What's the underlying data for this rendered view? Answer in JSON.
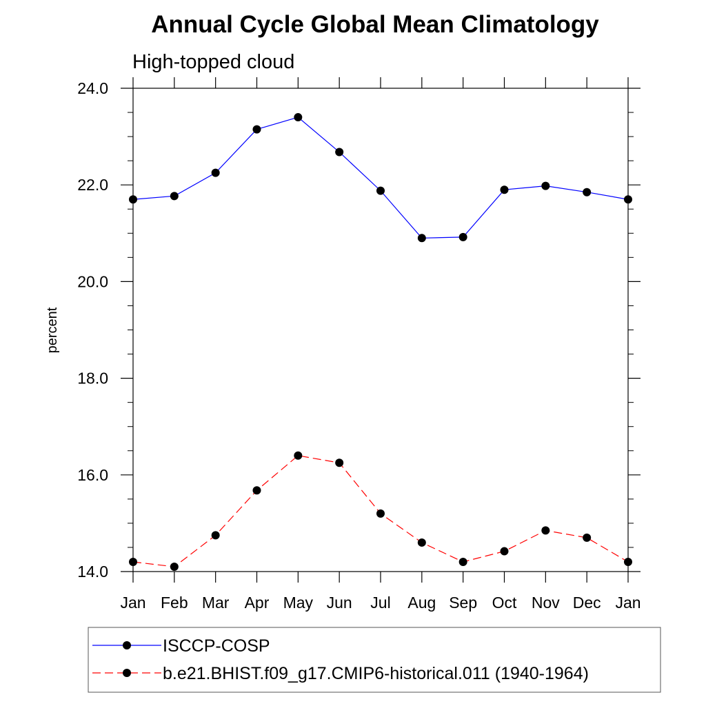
{
  "chart_data": {
    "type": "line",
    "title": "Annual Cycle Global Mean Climatology",
    "subtitle": "High-topped cloud",
    "xlabel": "",
    "ylabel": "percent",
    "categories": [
      "Jan",
      "Feb",
      "Mar",
      "Apr",
      "May",
      "Jun",
      "Jul",
      "Aug",
      "Sep",
      "Oct",
      "Nov",
      "Dec",
      "Jan"
    ],
    "ylim": [
      14.0,
      24.0
    ],
    "yticks": [
      "14.0",
      "16.0",
      "18.0",
      "20.0",
      "22.0",
      "24.0"
    ],
    "ytick_values": [
      14,
      16,
      18,
      20,
      22,
      24
    ],
    "grid": false,
    "legend_position": "bottom",
    "series": [
      {
        "name": "ISCCP-COSP",
        "color": "#0000ff",
        "style": "solid",
        "values": [
          21.7,
          21.77,
          22.25,
          23.15,
          23.4,
          22.68,
          21.88,
          20.9,
          20.92,
          21.9,
          21.98,
          21.85,
          21.7
        ]
      },
      {
        "name": "b.e21.BHIST.f09_g17.CMIP6-historical.011 (1940-1964)",
        "color": "#ff0000",
        "style": "dashed",
        "values": [
          14.2,
          14.1,
          14.75,
          15.68,
          16.4,
          16.25,
          15.2,
          14.6,
          14.2,
          14.42,
          14.85,
          14.7,
          14.2
        ]
      }
    ]
  }
}
